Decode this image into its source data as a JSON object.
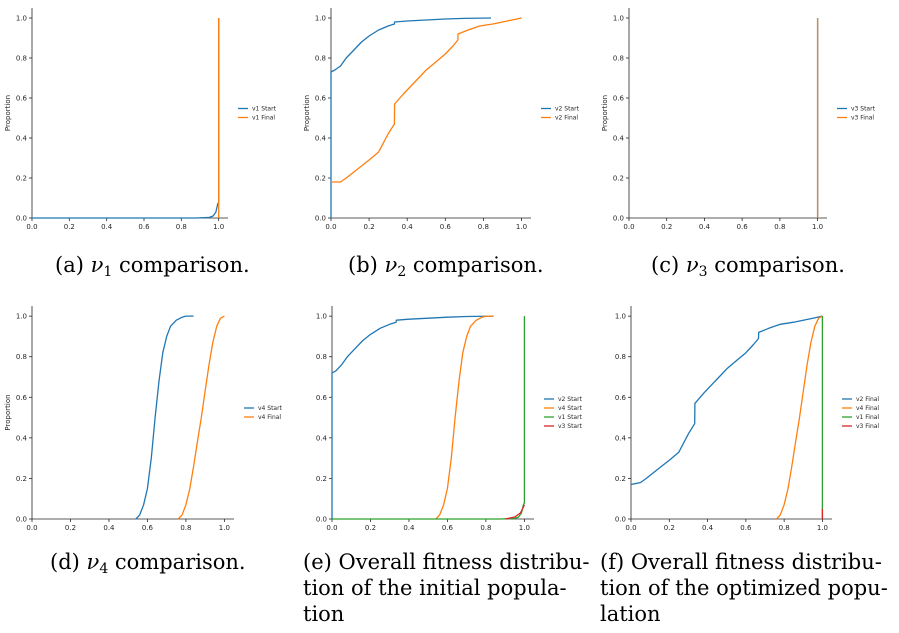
{
  "colors": {
    "blue": "#1f77b4",
    "orange": "#ff7f0e",
    "green": "#2ca02c",
    "red": "#d62728",
    "axis": "#262626"
  },
  "chart_data": [
    {
      "id": "a",
      "type": "line",
      "subtype": "cumulative distribution (step)",
      "ylabel": "Proportion",
      "xlim": [
        0,
        1.05
      ],
      "ylim": [
        0,
        1.05
      ],
      "xticks": [
        "0.0",
        "0.2",
        "0.4",
        "0.6",
        "0.8",
        "1.0"
      ],
      "yticks": [
        "0.0",
        "0.2",
        "0.4",
        "0.6",
        "0.8",
        "1.0"
      ],
      "legend_position": "center-right",
      "series": [
        {
          "name": "v1 Start",
          "color": "#1f77b4",
          "x": [
            0,
            0.88,
            0.95,
            0.97,
            0.985,
            0.99,
            0.995,
            1.0,
            1.0
          ],
          "y": [
            0,
            0,
            0.003,
            0.01,
            0.03,
            0.05,
            0.07,
            0.08,
            1.0
          ]
        },
        {
          "name": "v1 Final",
          "color": "#ff7f0e",
          "x": [
            1.0,
            1.0
          ],
          "y": [
            0,
            1.0
          ]
        }
      ],
      "caption": {
        "label": "(a)",
        "symbol": "ν",
        "sub": "1",
        "text": "comparison."
      }
    },
    {
      "id": "b",
      "type": "line",
      "subtype": "cumulative distribution (step)",
      "ylabel": "Proportion",
      "xlim": [
        0,
        1.05
      ],
      "ylim": [
        0,
        1.05
      ],
      "xticks": [
        "0.0",
        "0.2",
        "0.4",
        "0.6",
        "0.8",
        "1.0"
      ],
      "yticks": [
        "0.0",
        "0.2",
        "0.4",
        "0.6",
        "0.8",
        "1.0"
      ],
      "legend_position": "center-right",
      "series": [
        {
          "name": "v2 Start",
          "color": "#1f77b4",
          "x": [
            0,
            0.0,
            0.02,
            0.05,
            0.08,
            0.12,
            0.16,
            0.2,
            0.25,
            0.3,
            0.333,
            0.334,
            0.4,
            0.5,
            0.6,
            0.7,
            0.84
          ],
          "y": [
            0,
            0.73,
            0.74,
            0.76,
            0.8,
            0.84,
            0.88,
            0.91,
            0.94,
            0.96,
            0.97,
            0.98,
            0.985,
            0.99,
            0.995,
            0.998,
            1.0
          ]
        },
        {
          "name": "v2 Final",
          "color": "#ff7f0e",
          "x": [
            0,
            0.05,
            0.08,
            0.12,
            0.16,
            0.2,
            0.25,
            0.3,
            0.333,
            0.334,
            0.38,
            0.42,
            0.47,
            0.5,
            0.55,
            0.6,
            0.64,
            0.666,
            0.667,
            0.72,
            0.78,
            0.85,
            0.9,
            0.95,
            1.0
          ],
          "y": [
            0.18,
            0.18,
            0.2,
            0.23,
            0.26,
            0.29,
            0.33,
            0.42,
            0.47,
            0.57,
            0.62,
            0.66,
            0.71,
            0.74,
            0.78,
            0.82,
            0.86,
            0.89,
            0.92,
            0.94,
            0.96,
            0.97,
            0.98,
            0.99,
            1.0
          ]
        }
      ],
      "caption": {
        "label": "(b)",
        "symbol": "ν",
        "sub": "2",
        "text": "comparison."
      }
    },
    {
      "id": "c",
      "type": "line",
      "subtype": "cumulative distribution (step)",
      "ylabel": "Proportion",
      "xlim": [
        0,
        1.05
      ],
      "ylim": [
        0,
        1.05
      ],
      "xticks": [
        "0.0",
        "0.2",
        "0.4",
        "0.6",
        "0.8",
        "1.0"
      ],
      "yticks": [
        "0.0",
        "0.2",
        "0.4",
        "0.6",
        "0.8",
        "1.0"
      ],
      "legend_position": "center-right",
      "series": [
        {
          "name": "v3 Start",
          "color": "#1f77b4",
          "x": [
            1.0,
            1.0
          ],
          "y": [
            0,
            1.0
          ]
        },
        {
          "name": "v3 Final",
          "color": "#ff7f0e",
          "x": [
            1.0,
            1.0
          ],
          "y": [
            0,
            1.0
          ]
        }
      ],
      "caption": {
        "label": "(c)",
        "symbol": "ν",
        "sub": "3",
        "text": "comparison."
      }
    },
    {
      "id": "d",
      "type": "line",
      "subtype": "cumulative distribution",
      "ylabel": "Proportion",
      "xlim": [
        0,
        1.05
      ],
      "ylim": [
        0,
        1.05
      ],
      "xticks": [
        "0.0",
        "0.2",
        "0.4",
        "0.6",
        "0.8",
        "1.0"
      ],
      "yticks": [
        "0.0",
        "0.2",
        "0.4",
        "0.6",
        "0.8",
        "1.0"
      ],
      "legend_position": "center-right",
      "series": [
        {
          "name": "v4 Start",
          "color": "#1f77b4",
          "x": [
            0.54,
            0.56,
            0.58,
            0.6,
            0.62,
            0.64,
            0.66,
            0.68,
            0.7,
            0.72,
            0.75,
            0.78,
            0.8,
            0.84
          ],
          "y": [
            0,
            0.02,
            0.07,
            0.15,
            0.3,
            0.5,
            0.68,
            0.82,
            0.9,
            0.95,
            0.98,
            0.995,
            1.0,
            1.0
          ]
        },
        {
          "name": "v4 Final",
          "color": "#ff7f0e",
          "x": [
            0.76,
            0.78,
            0.8,
            0.82,
            0.84,
            0.86,
            0.88,
            0.9,
            0.92,
            0.94,
            0.96,
            0.98,
            1.0
          ],
          "y": [
            0,
            0.02,
            0.07,
            0.15,
            0.26,
            0.38,
            0.5,
            0.63,
            0.76,
            0.87,
            0.95,
            0.99,
            1.0
          ]
        }
      ],
      "caption": {
        "label": "(d)",
        "symbol": "ν",
        "sub": "4",
        "text": "comparison."
      }
    },
    {
      "id": "e",
      "type": "line",
      "subtype": "cumulative distribution",
      "xlim": [
        0,
        1.05
      ],
      "ylim": [
        0,
        1.05
      ],
      "xticks": [
        "0.0",
        "0.2",
        "0.4",
        "0.6",
        "0.8",
        "1.0"
      ],
      "yticks": [
        "0.0",
        "0.2",
        "0.4",
        "0.6",
        "0.8",
        "1.0"
      ],
      "legend_position": "center-right",
      "series": [
        {
          "name": "v2 Start",
          "color": "#1f77b4",
          "x": [
            0,
            0.0,
            0.02,
            0.05,
            0.08,
            0.12,
            0.16,
            0.2,
            0.25,
            0.3,
            0.333,
            0.334,
            0.4,
            0.5,
            0.6,
            0.7,
            0.84
          ],
          "y": [
            0,
            0.72,
            0.73,
            0.76,
            0.8,
            0.84,
            0.88,
            0.91,
            0.94,
            0.96,
            0.97,
            0.98,
            0.985,
            0.99,
            0.995,
            0.998,
            1.0
          ]
        },
        {
          "name": "v4 Start",
          "color": "#ff7f0e",
          "x": [
            0.54,
            0.56,
            0.58,
            0.6,
            0.62,
            0.64,
            0.66,
            0.68,
            0.7,
            0.72,
            0.75,
            0.78,
            0.8,
            0.84
          ],
          "y": [
            0,
            0.02,
            0.07,
            0.15,
            0.3,
            0.5,
            0.68,
            0.82,
            0.9,
            0.95,
            0.98,
            0.995,
            1.0,
            1.0
          ]
        },
        {
          "name": "v1 Start",
          "color": "#2ca02c",
          "x": [
            0,
            0.88,
            0.95,
            0.97,
            0.985,
            0.99,
            0.995,
            1.0,
            1.0
          ],
          "y": [
            0,
            0,
            0.003,
            0.01,
            0.03,
            0.05,
            0.07,
            0.08,
            1.0
          ]
        },
        {
          "name": "v3 Start",
          "color": "#d62728",
          "x": [
            0.9,
            0.95,
            0.98,
            1.0
          ],
          "y": [
            0,
            0.01,
            0.03,
            0.07
          ]
        }
      ],
      "caption": {
        "label": "(e)",
        "lines": [
          "(e) Overall fitness distribu-",
          "tion of the initial popula-",
          "tion"
        ]
      }
    },
    {
      "id": "f",
      "type": "line",
      "subtype": "cumulative distribution",
      "xlim": [
        0,
        1.05
      ],
      "ylim": [
        0,
        1.05
      ],
      "xticks": [
        "0.0",
        "0.2",
        "0.4",
        "0.6",
        "0.8",
        "1.0"
      ],
      "yticks": [
        "0.0",
        "0.2",
        "0.4",
        "0.6",
        "0.8",
        "1.0"
      ],
      "legend_position": "center-right",
      "series": [
        {
          "name": "v2 Final",
          "color": "#1f77b4",
          "x": [
            0,
            0.05,
            0.08,
            0.12,
            0.16,
            0.2,
            0.25,
            0.3,
            0.333,
            0.334,
            0.38,
            0.42,
            0.47,
            0.5,
            0.55,
            0.6,
            0.64,
            0.666,
            0.667,
            0.72,
            0.78,
            0.85,
            0.9,
            0.95,
            1.0
          ],
          "y": [
            0.17,
            0.18,
            0.2,
            0.23,
            0.26,
            0.29,
            0.33,
            0.42,
            0.47,
            0.57,
            0.62,
            0.66,
            0.71,
            0.74,
            0.78,
            0.82,
            0.86,
            0.89,
            0.92,
            0.94,
            0.96,
            0.97,
            0.98,
            0.99,
            1.0
          ]
        },
        {
          "name": "v4 Final",
          "color": "#ff7f0e",
          "x": [
            0.76,
            0.78,
            0.8,
            0.82,
            0.84,
            0.86,
            0.88,
            0.9,
            0.92,
            0.94,
            0.96,
            0.98,
            1.0
          ],
          "y": [
            0,
            0.02,
            0.07,
            0.15,
            0.26,
            0.38,
            0.5,
            0.63,
            0.76,
            0.87,
            0.95,
            0.99,
            1.0
          ]
        },
        {
          "name": "v1 Final",
          "color": "#2ca02c",
          "x": [
            1.0,
            1.0
          ],
          "y": [
            0,
            1.0
          ]
        },
        {
          "name": "v3 Final",
          "color": "#d62728",
          "x": [
            1.0,
            1.0
          ],
          "y": [
            0,
            0.05
          ]
        }
      ],
      "caption": {
        "label": "(f)",
        "lines": [
          "(f) Overall fitness distribu-",
          "tion of the optimized popu-",
          "lation"
        ]
      }
    }
  ]
}
